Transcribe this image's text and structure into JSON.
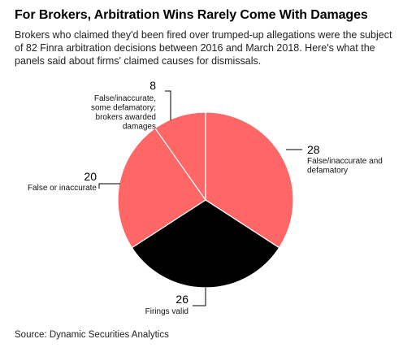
{
  "title": "For Brokers, Arbitration Wins Rarely Come With Damages",
  "subtitle": "Brokers who claimed they'd been fired over trumped-up allegations were the subject of 82 Finra arbitration decisions between 2016 and March 2018. Here's what the panels said about firms' claimed causes for dismissals.",
  "source": "Source: Dynamic Securities Analytics",
  "chart_data": {
    "type": "pie",
    "total": 82,
    "slices": [
      {
        "value": 28,
        "label": "False/inaccurate and defamatory",
        "label_lines": [
          "False/inaccurate and",
          "defamatory"
        ],
        "color": "#ff6666"
      },
      {
        "value": 26,
        "label": "Firings valid",
        "label_lines": [
          "Firings valid"
        ],
        "color": "#000000"
      },
      {
        "value": 20,
        "label": "False or inaccurate",
        "label_lines": [
          "False or inaccurate"
        ],
        "color": "#ff6666"
      },
      {
        "value": 8,
        "label": "False/inaccurate, some defamatory; brokers awarded damages",
        "label_lines": [
          "False/inaccurate,",
          "some defamatory;",
          "brokers awarded",
          "damages"
        ],
        "color": "#ff6666"
      }
    ]
  }
}
